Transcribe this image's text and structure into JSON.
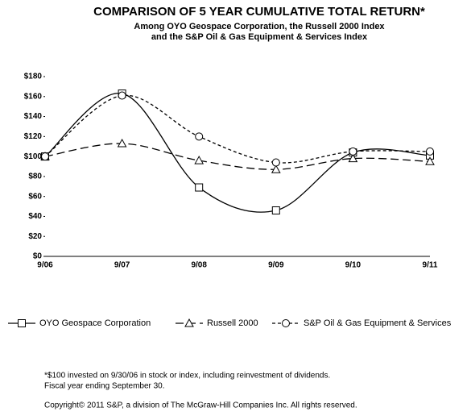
{
  "chart_data": {
    "type": "line",
    "title": "COMPARISON OF 5 YEAR CUMULATIVE TOTAL RETURN*",
    "subtitle": [
      "Among OYO Geospace Corporation, the Russell 2000 Index",
      "and the S&P Oil & Gas Equipment & Services Index"
    ],
    "categories": [
      "9/06",
      "9/07",
      "9/08",
      "9/09",
      "9/10",
      "9/11"
    ],
    "series": [
      {
        "name": "OYO Geospace Corporation",
        "color": "#000000",
        "dash": "solid",
        "marker": "square",
        "values": [
          100,
          163,
          69,
          46,
          104,
          101
        ]
      },
      {
        "name": "Russell 2000",
        "color": "#000000",
        "dash": "long",
        "marker": "triangle",
        "values": [
          100,
          113,
          96,
          87,
          98,
          95
        ]
      },
      {
        "name": "S&P Oil & Gas Equipment & Services",
        "color": "#000000",
        "dash": "short",
        "marker": "circle",
        "values": [
          100,
          161,
          120,
          94,
          105,
          105
        ]
      }
    ],
    "ylim": [
      0,
      180
    ],
    "yticks": [
      {
        "value": 0,
        "label": "$0"
      },
      {
        "value": 20,
        "label": "$20"
      },
      {
        "value": 40,
        "label": "$40"
      },
      {
        "value": 60,
        "label": "$60"
      },
      {
        "value": 80,
        "label": "$80"
      },
      {
        "value": 100,
        "label": "$100"
      },
      {
        "value": 120,
        "label": "$120"
      },
      {
        "value": 140,
        "label": "$140"
      },
      {
        "value": 160,
        "label": "$160"
      },
      {
        "value": 180,
        "label": "$180"
      }
    ],
    "legend": "bottom",
    "notes": [
      "*$100 invested on 9/30/06 in stock or index, including reinvestment of dividends.",
      "Fiscal year ending September 30.",
      "Copyright© 2011 S&P, a division of The McGraw-Hill Companies Inc. All rights reserved."
    ]
  }
}
